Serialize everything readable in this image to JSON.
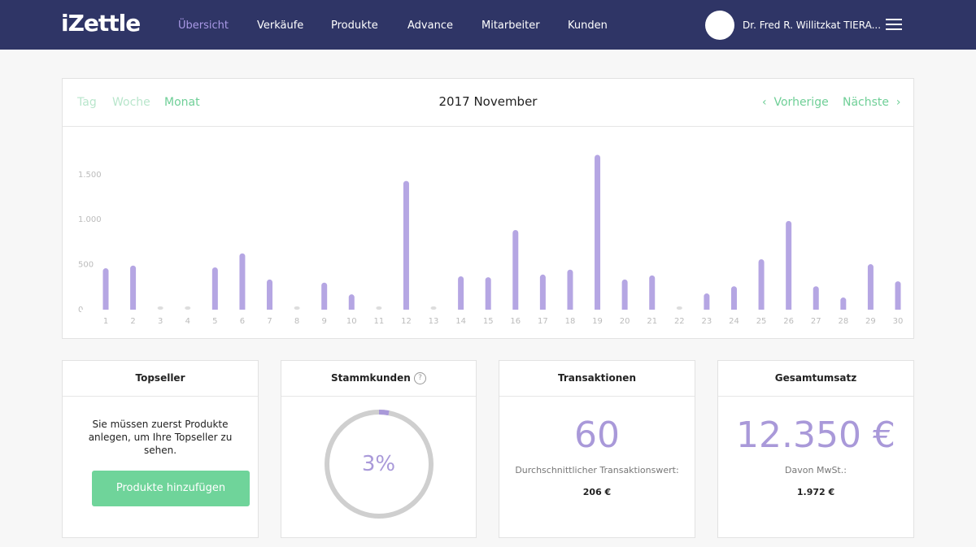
{
  "header": {
    "logo": "iZettle",
    "nav": [
      "Übersicht",
      "Verkäufe",
      "Produkte",
      "Advance",
      "Mitarbeiter",
      "Kunden"
    ],
    "user": "Dr. Fred R. Willitzkat TIERA..."
  },
  "period_tabs": [
    "Tag",
    "Woche",
    "Monat"
  ],
  "period_title": "2017 November",
  "prev": "Vorherige",
  "next": "Nächste",
  "chart_data": {
    "type": "bar",
    "categories": [
      "1",
      "2",
      "3",
      "4",
      "5",
      "6",
      "7",
      "8",
      "9",
      "10",
      "11",
      "12",
      "13",
      "14",
      "15",
      "16",
      "17",
      "18",
      "19",
      "20",
      "21",
      "22",
      "23",
      "24",
      "25",
      "26",
      "27",
      "28",
      "29",
      "30"
    ],
    "values": [
      460,
      490,
      0,
      0,
      470,
      625,
      335,
      0,
      300,
      170,
      0,
      1430,
      0,
      370,
      360,
      885,
      390,
      445,
      1720,
      335,
      380,
      0,
      180,
      260,
      560,
      985,
      260,
      135,
      505,
      315
    ],
    "color": "#b5a6e3",
    "ylim": [
      0,
      1950
    ],
    "yticks": [
      0,
      500,
      {
        "value": 1000,
        "label": "1.000"
      },
      {
        "value": 1500,
        "label": "1.500"
      }
    ]
  },
  "cards": {
    "topseller": {
      "title": "Topseller",
      "text": "Sie müssen zuerst Produkte anlegen, um Ihre Topseller zu sehen.",
      "button": "Produkte hinzufügen"
    },
    "stammkunden": {
      "title": "Stammkunden",
      "ring": {
        "value": 3,
        "label": "3%"
      }
    },
    "transaktionen": {
      "title": "Transaktionen",
      "value": "60",
      "sub": "Durchschnittlicher Transaktionswert:",
      "subvalue": "206 €"
    },
    "gesamtumsatz": {
      "title": "Gesamtumsatz",
      "value": "12.350 €",
      "sub": "Davon MwSt.:",
      "subvalue": "1.972 €"
    }
  }
}
